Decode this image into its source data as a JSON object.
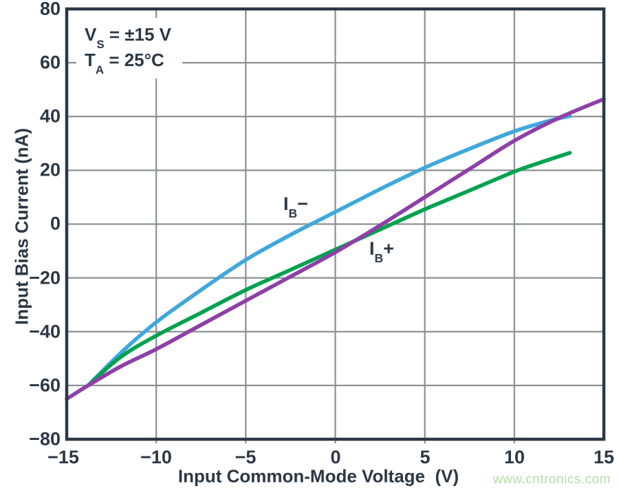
{
  "watermark": "www.cntronics.com",
  "colors": {
    "axis_and_text": "#2C3845",
    "grid": "#8B9095",
    "background": "#FFFFFF",
    "watermark": "#B4DCAA",
    "ib_minus_curve": "#3FA8DC",
    "ib_plus_curve": "#00A24F",
    "unlabeled_curve": "#8E3FA8"
  },
  "chart_data": {
    "type": "line",
    "title": "",
    "xlabel": "Input Common-Mode Voltage  (V)",
    "ylabel": "Input Bias Current (nA)",
    "xlim": [
      -15,
      15
    ],
    "ylim": [
      -80,
      80
    ],
    "grid": true,
    "x_ticks": [
      -15,
      -10,
      -5,
      0,
      5,
      10,
      15
    ],
    "x_tick_labels": [
      "−15",
      "−10",
      "−5",
      "0",
      "5",
      "10",
      "15"
    ],
    "y_ticks": [
      80,
      60,
      40,
      20,
      0,
      -20,
      -40,
      -60,
      -80
    ],
    "y_tick_labels": [
      "80",
      "60",
      "40",
      "20",
      "0",
      "−20",
      "−40",
      "−60",
      "−80"
    ],
    "annotation": {
      "line1": {
        "sym": "V",
        "sub": "S",
        "rest": " = ±15 V"
      },
      "line2": {
        "sym": "T",
        "sub": "A",
        "rest": " = 25°C"
      }
    },
    "series": [
      {
        "id": "ib-minus",
        "label": "IB−",
        "label_parts": {
          "sym": "I",
          "sub": "B",
          "suffix": "−"
        },
        "color": "#3FA8DC",
        "points": [
          [
            -13.8,
            -60
          ],
          [
            -12,
            -48
          ],
          [
            -10,
            -36.5
          ],
          [
            -7.5,
            -24.5
          ],
          [
            -5,
            -13.3
          ],
          [
            -2.5,
            -4
          ],
          [
            0,
            4.5
          ],
          [
            2.5,
            13
          ],
          [
            5,
            21
          ],
          [
            7.5,
            28
          ],
          [
            10,
            34.5
          ],
          [
            12,
            38.5
          ],
          [
            13.1,
            40.2
          ]
        ]
      },
      {
        "id": "ib-plus",
        "label": "IB+",
        "label_parts": {
          "sym": "I",
          "sub": "B",
          "suffix": "+"
        },
        "color": "#00A24F",
        "points": [
          [
            -13.8,
            -60
          ],
          [
            -12,
            -49.5
          ],
          [
            -10,
            -41.5
          ],
          [
            -7.5,
            -33
          ],
          [
            -5,
            -24.5
          ],
          [
            -2.5,
            -17
          ],
          [
            0,
            -9.5
          ],
          [
            2.5,
            -2
          ],
          [
            5,
            5.5
          ],
          [
            7.5,
            12.5
          ],
          [
            10,
            19.5
          ],
          [
            11.5,
            23
          ],
          [
            13.1,
            26.5
          ]
        ]
      },
      {
        "id": "unlabeled-purple",
        "label": "",
        "color": "#8E3FA8",
        "points": [
          [
            -15,
            -65
          ],
          [
            -13.8,
            -60
          ],
          [
            -12,
            -53
          ],
          [
            -10,
            -46.5
          ],
          [
            -7.5,
            -37.5
          ],
          [
            -5,
            -28.5
          ],
          [
            -2.5,
            -19.5
          ],
          [
            0,
            -10.5
          ],
          [
            2.5,
            -0.5
          ],
          [
            5,
            10
          ],
          [
            7.5,
            20.5
          ],
          [
            10,
            31
          ],
          [
            12.5,
            39.5
          ],
          [
            15,
            46.5
          ]
        ]
      }
    ]
  }
}
